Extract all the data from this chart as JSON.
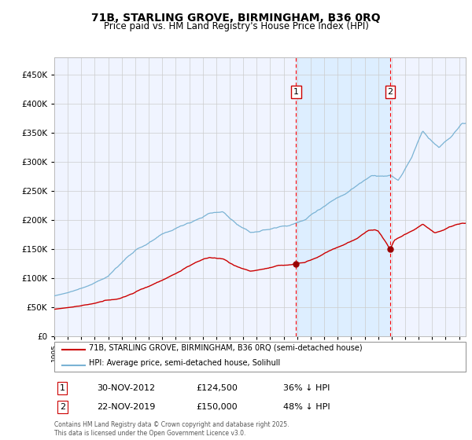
{
  "title": "71B, STARLING GROVE, BIRMINGHAM, B36 0RQ",
  "subtitle": "Price paid vs. HM Land Registry's House Price Index (HPI)",
  "legend_line1": "71B, STARLING GROVE, BIRMINGHAM, B36 0RQ (semi-detached house)",
  "legend_line2": "HPI: Average price, semi-detached house, Solihull",
  "ann1_label": "1",
  "ann1_date": "30-NOV-2012",
  "ann1_amount": "£124,500",
  "ann1_pct": "36% ↓ HPI",
  "ann1_price": 124500,
  "ann1_year": 2012.917,
  "ann2_label": "2",
  "ann2_date": "22-NOV-2019",
  "ann2_amount": "£150,000",
  "ann2_pct": "48% ↓ HPI",
  "ann2_price": 150000,
  "ann2_year": 2019.892,
  "footer": "Contains HM Land Registry data © Crown copyright and database right 2025.\nThis data is licensed under the Open Government Licence v3.0.",
  "hpi_color": "#7ab3d4",
  "price_color": "#cc0000",
  "marker_color": "#990000",
  "shade_color": "#ddeeff",
  "grid_color": "#cccccc",
  "bg_color": "#f0f4ff",
  "ylim": [
    0,
    480000
  ],
  "yticks": [
    0,
    50000,
    100000,
    150000,
    200000,
    250000,
    300000,
    350000,
    400000,
    450000
  ],
  "start_year": 1995,
  "end_year": 2025
}
